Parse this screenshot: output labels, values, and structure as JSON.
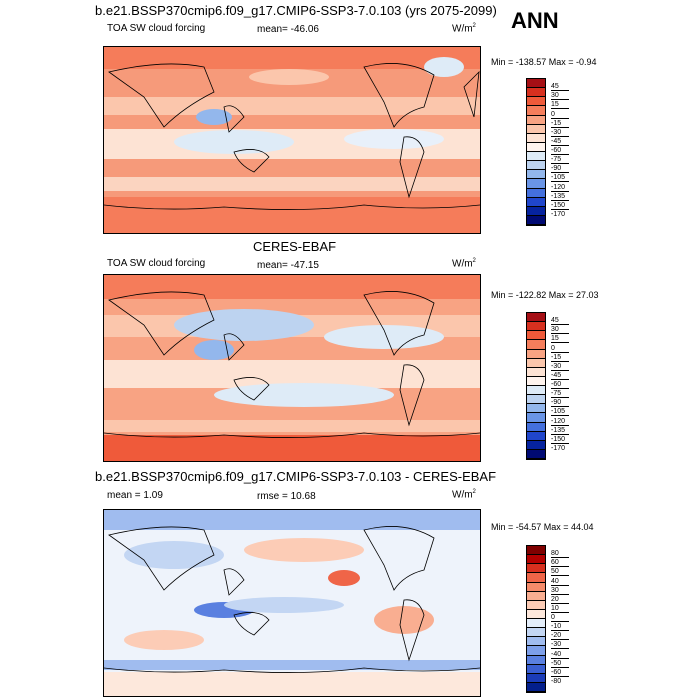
{
  "ann_label": "ANN",
  "panels": [
    {
      "title": "b.e21.BSSP370cmip6.f09_g17.CMIP6-SSP3-7.0.103 (yrs 2075-2099)",
      "variable": "TOA SW cloud forcing",
      "stat": "mean= -46.06",
      "units": "W/m",
      "units_sup": "2",
      "minmax": "Min = -138.57 Max =  -0.94",
      "levels": [
        "45",
        "30",
        "15",
        "0",
        "-15",
        "-30",
        "-45",
        "-60",
        "-75",
        "-90",
        "-105",
        "-120",
        "-135",
        "-150",
        "-170"
      ],
      "colors": [
        "#a50f15",
        "#d7301f",
        "#ef5a3a",
        "#f57e5c",
        "#f8a383",
        "#fbc6ac",
        "#fde3d4",
        "#fff4ee",
        "#deebf7",
        "#bdd3f0",
        "#93b7ec",
        "#6a95e6",
        "#4470dd",
        "#2046cc",
        "#06239f",
        "#000a73"
      ]
    },
    {
      "title": "CERES-EBAF",
      "variable": "TOA SW cloud forcing",
      "stat": "mean= -47.15",
      "units": "W/m",
      "units_sup": "2",
      "minmax": "Min = -122.82 Max =  27.03",
      "levels": [
        "45",
        "30",
        "15",
        "0",
        "-15",
        "-30",
        "-45",
        "-60",
        "-75",
        "-90",
        "-105",
        "-120",
        "-135",
        "-150",
        "-170"
      ],
      "colors": [
        "#a50f15",
        "#d7301f",
        "#ef5a3a",
        "#f57e5c",
        "#f8a383",
        "#fbc6ac",
        "#fde3d4",
        "#fff4ee",
        "#deebf7",
        "#bdd3f0",
        "#93b7ec",
        "#6a95e6",
        "#4470dd",
        "#2046cc",
        "#06239f",
        "#000a73"
      ]
    },
    {
      "title": "b.e21.BSSP370cmip6.f09_g17.CMIP6-SSP3-7.0.103 - CERES-EBAF",
      "stat_mean": "mean =   1.09",
      "stat_rmse": "rmse =  10.68",
      "units": "W/m",
      "units_sup": "2",
      "minmax": "Min = -54.57 Max =  44.04",
      "levels": [
        "80",
        "60",
        "50",
        "40",
        "30",
        "20",
        "10",
        "0",
        "-10",
        "-20",
        "-30",
        "-40",
        "-50",
        "-60",
        "-80"
      ],
      "colors": [
        "#7f0000",
        "#b30000",
        "#d7301f",
        "#ef6548",
        "#f58b6a",
        "#f9ae91",
        "#fcccb6",
        "#fde8dc",
        "#e4eefa",
        "#c3d6f3",
        "#a0bcef",
        "#7d9fe9",
        "#5a80e0",
        "#3a5fd2",
        "#1b3cb8",
        "#031f8c"
      ]
    }
  ]
}
